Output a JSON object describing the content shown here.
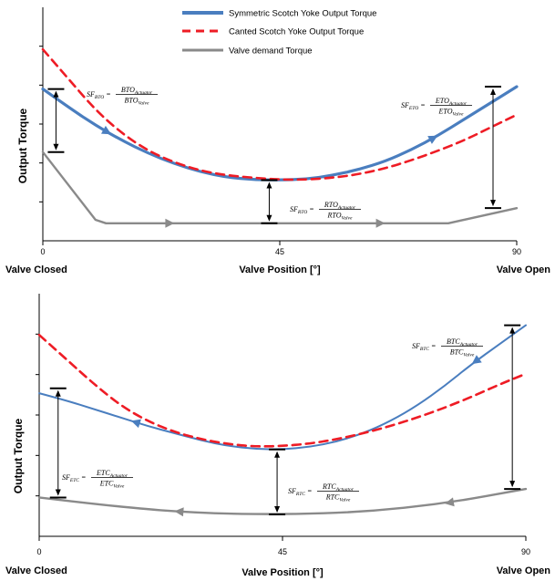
{
  "colors": {
    "symmetric": "#4a7ebf",
    "canted": "#ee1c25",
    "demand": "#8a8a8a",
    "axis": "#000000"
  },
  "legend": [
    {
      "key": "symmetric",
      "label": "Symmetric Scotch Yoke Output Torque"
    },
    {
      "key": "canted",
      "label": "Canted Scotch Yoke Output Torque"
    },
    {
      "key": "demand",
      "label": "Valve demand Torque"
    }
  ],
  "chart_data": [
    {
      "type": "line",
      "title": "",
      "xlabel": "Valve Position [°]",
      "ylabel": "Output Torque",
      "xlim": [
        0,
        90
      ],
      "ylim": [
        0,
        10
      ],
      "x_ticks": [
        "0",
        "45",
        "90"
      ],
      "end_labels": {
        "left": "Valve Closed",
        "right": "Valve Open"
      },
      "series": [
        {
          "name": "Symmetric Scotch Yoke Output Torque",
          "key": "symmetric",
          "points": [
            [
              0,
              6.5
            ],
            [
              5,
              5.7
            ],
            [
              10,
              4.95
            ],
            [
              15,
              4.3
            ],
            [
              20,
              3.75
            ],
            [
              25,
              3.3
            ],
            [
              30,
              2.95
            ],
            [
              35,
              2.72
            ],
            [
              40,
              2.62
            ],
            [
              45,
              2.6
            ],
            [
              50,
              2.64
            ],
            [
              55,
              2.8
            ],
            [
              60,
              3.05
            ],
            [
              65,
              3.4
            ],
            [
              70,
              3.9
            ],
            [
              75,
              4.5
            ],
            [
              80,
              5.2
            ],
            [
              85,
              5.9
            ],
            [
              90,
              6.6
            ]
          ]
        },
        {
          "name": "Canted Scotch Yoke Output Torque",
          "key": "canted",
          "points": [
            [
              0,
              8.2
            ],
            [
              5,
              6.9
            ],
            [
              10,
              5.6
            ],
            [
              15,
              4.6
            ],
            [
              20,
              3.85
            ],
            [
              25,
              3.35
            ],
            [
              30,
              3.0
            ],
            [
              35,
              2.8
            ],
            [
              40,
              2.7
            ],
            [
              45,
              2.62
            ],
            [
              50,
              2.62
            ],
            [
              55,
              2.7
            ],
            [
              60,
              2.85
            ],
            [
              65,
              3.1
            ],
            [
              70,
              3.45
            ],
            [
              75,
              3.85
            ],
            [
              80,
              4.3
            ],
            [
              85,
              4.85
            ],
            [
              90,
              5.4
            ]
          ]
        },
        {
          "name": "Valve demand Torque",
          "key": "demand",
          "points": [
            [
              0,
              3.8
            ],
            [
              10,
              0.9
            ],
            [
              12,
              0.75
            ],
            [
              30,
              0.75
            ],
            [
              50,
              0.75
            ],
            [
              77,
              0.75
            ],
            [
              90,
              1.4
            ]
          ]
        }
      ],
      "arrows": [
        {
          "series": "symmetric",
          "x": 13,
          "direction": "right"
        },
        {
          "series": "symmetric",
          "x": 75,
          "direction": "right"
        },
        {
          "series": "demand",
          "x": 25,
          "direction": "right"
        },
        {
          "series": "demand",
          "x": 65,
          "direction": "right"
        }
      ],
      "safety_factors": [
        {
          "x": 2.5,
          "y_top": 6.5,
          "y_bottom": 3.8,
          "sf": "SF",
          "sub": "BTO",
          "num": "BTO",
          "num_sub": "Actuator",
          "den": "BTO",
          "den_sub": "Valve"
        },
        {
          "x": 43,
          "y_top": 2.6,
          "y_bottom": 0.75,
          "sf": "SF",
          "sub": "RTO",
          "num": "RTO",
          "num_sub": "Actuator",
          "den": "RTO",
          "den_sub": "Valve"
        },
        {
          "x": 85.5,
          "y_top": 6.6,
          "y_bottom": 1.4,
          "sf": "SF",
          "sub": "ETO",
          "num": "ETO",
          "num_sub": "Actuator",
          "den": "ETO",
          "den_sub": "Valve"
        }
      ]
    },
    {
      "type": "line",
      "title": "",
      "xlabel": "Valve Position [°]",
      "ylabel": "Output Torque",
      "xlim": [
        0,
        90
      ],
      "ylim": [
        0,
        10
      ],
      "x_ticks": [
        "0",
        "45",
        "90"
      ],
      "end_labels": {
        "left": "Valve Closed",
        "right": "Valve Open"
      },
      "series": [
        {
          "name": "Symmetric Scotch Yoke Output Torque",
          "key": "symmetric",
          "points": [
            [
              0,
              5.9
            ],
            [
              5,
              5.6
            ],
            [
              10,
              5.25
            ],
            [
              15,
              4.9
            ],
            [
              20,
              4.55
            ],
            [
              25,
              4.25
            ],
            [
              30,
              3.95
            ],
            [
              35,
              3.72
            ],
            [
              40,
              3.6
            ],
            [
              45,
              3.58
            ],
            [
              50,
              3.68
            ],
            [
              55,
              3.9
            ],
            [
              60,
              4.25
            ],
            [
              65,
              4.75
            ],
            [
              70,
              5.4
            ],
            [
              75,
              6.2
            ],
            [
              80,
              7.1
            ],
            [
              85,
              7.9
            ],
            [
              90,
              8.7
            ]
          ]
        },
        {
          "name": "Canted Scotch Yoke Output Torque",
          "key": "canted",
          "points": [
            [
              0,
              8.3
            ],
            [
              5,
              7.3
            ],
            [
              10,
              6.3
            ],
            [
              15,
              5.4
            ],
            [
              20,
              4.75
            ],
            [
              25,
              4.3
            ],
            [
              30,
              4.0
            ],
            [
              35,
              3.8
            ],
            [
              40,
              3.7
            ],
            [
              45,
              3.72
            ],
            [
              50,
              3.82
            ],
            [
              55,
              4.0
            ],
            [
              60,
              4.25
            ],
            [
              65,
              4.55
            ],
            [
              70,
              4.9
            ],
            [
              75,
              5.3
            ],
            [
              80,
              5.75
            ],
            [
              85,
              6.25
            ],
            [
              90,
              6.7
            ]
          ]
        },
        {
          "name": "Valve demand Torque",
          "key": "demand",
          "points": [
            [
              0,
              1.6
            ],
            [
              15,
              1.2
            ],
            [
              30,
              0.95
            ],
            [
              45,
              0.9
            ],
            [
              60,
              1.0
            ],
            [
              75,
              1.35
            ],
            [
              90,
              1.95
            ]
          ]
        }
      ],
      "arrows": [
        {
          "series": "symmetric",
          "x": 80,
          "direction": "left"
        },
        {
          "series": "symmetric",
          "x": 17,
          "direction": "left"
        },
        {
          "series": "demand",
          "x": 75,
          "direction": "left"
        },
        {
          "series": "demand",
          "x": 25,
          "direction": "left"
        }
      ],
      "safety_factors": [
        {
          "x": 87.5,
          "y_top": 8.7,
          "y_bottom": 1.95,
          "sf": "SF",
          "sub": "BTC",
          "num": "BTC",
          "num_sub": "Actuator",
          "den": "BTC",
          "den_sub": "Valve"
        },
        {
          "x": 44,
          "y_top": 3.58,
          "y_bottom": 0.9,
          "sf": "SF",
          "sub": "RTC",
          "num": "RTC",
          "num_sub": "Actuator",
          "den": "RTC",
          "den_sub": "Valve"
        },
        {
          "x": 3.5,
          "y_top": 6.1,
          "y_bottom": 1.6,
          "sf": "SF",
          "sub": "ETC",
          "num": "ETC",
          "num_sub": "Actuator",
          "den": "ETC",
          "den_sub": "Valve"
        }
      ]
    }
  ]
}
